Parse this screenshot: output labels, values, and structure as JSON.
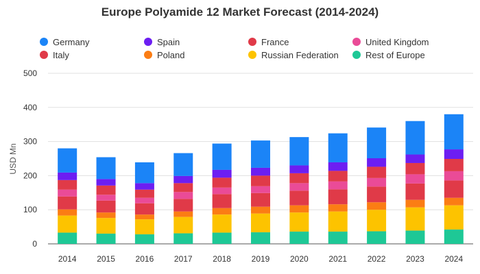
{
  "chart_data": {
    "type": "bar",
    "stacked": true,
    "title": "Europe Polyamide 12 Market Forecast (2014-2024)",
    "xlabel": "",
    "ylabel": "USD Mn",
    "ylim": [
      0,
      500
    ],
    "yticks": [
      0,
      100,
      200,
      300,
      400,
      500
    ],
    "grid": true,
    "legend_position": "top",
    "categories": [
      "2014",
      "2015",
      "2016",
      "2017",
      "2018",
      "2019",
      "2020",
      "2021",
      "2022",
      "2023",
      "2024"
    ],
    "series": [
      {
        "name": "Rest of Europe",
        "color": "#1ec896",
        "values": [
          33,
          30,
          28,
          31,
          33,
          34,
          36,
          36,
          37,
          39,
          42
        ]
      },
      {
        "name": "Russian Federation",
        "color": "#fdc300",
        "values": [
          50,
          46,
          44,
          48,
          53,
          55,
          56,
          59,
          63,
          68,
          71
        ]
      },
      {
        "name": "Poland",
        "color": "#fb7d14",
        "values": [
          18,
          16,
          14,
          16,
          19,
          20,
          21,
          21,
          22,
          22,
          22
        ]
      },
      {
        "name": "Italy",
        "color": "#e03a48",
        "values": [
          38,
          35,
          33,
          37,
          41,
          40,
          43,
          44,
          46,
          48,
          51
        ]
      },
      {
        "name": "United Kingdom",
        "color": "#ea4b97",
        "values": [
          20,
          17,
          16,
          20,
          19,
          20,
          22,
          23,
          25,
          27,
          27
        ]
      },
      {
        "name": "France",
        "color": "#e03a48",
        "values": [
          28,
          27,
          24,
          26,
          29,
          31,
          29,
          31,
          33,
          33,
          36
        ]
      },
      {
        "name": "Spain",
        "color": "#6c1ef2",
        "values": [
          22,
          19,
          19,
          21,
          23,
          23,
          23,
          25,
          25,
          25,
          28
        ]
      },
      {
        "name": "Germany",
        "color": "#1b84f7",
        "values": [
          71,
          64,
          61,
          67,
          77,
          80,
          83,
          85,
          90,
          98,
          103
        ]
      }
    ]
  },
  "legend": {
    "items": [
      {
        "name": "Germany",
        "color": "#1b84f7"
      },
      {
        "name": "Spain",
        "color": "#6c1ef2"
      },
      {
        "name": "France",
        "color": "#e03a48"
      },
      {
        "name": "United Kingdom",
        "color": "#ea4b97"
      },
      {
        "name": "Italy",
        "color": "#e03a48"
      },
      {
        "name": "Poland",
        "color": "#fb7d14"
      },
      {
        "name": "Russian Federation",
        "color": "#fdc300"
      },
      {
        "name": "Rest of Europe",
        "color": "#1ec896"
      }
    ]
  }
}
